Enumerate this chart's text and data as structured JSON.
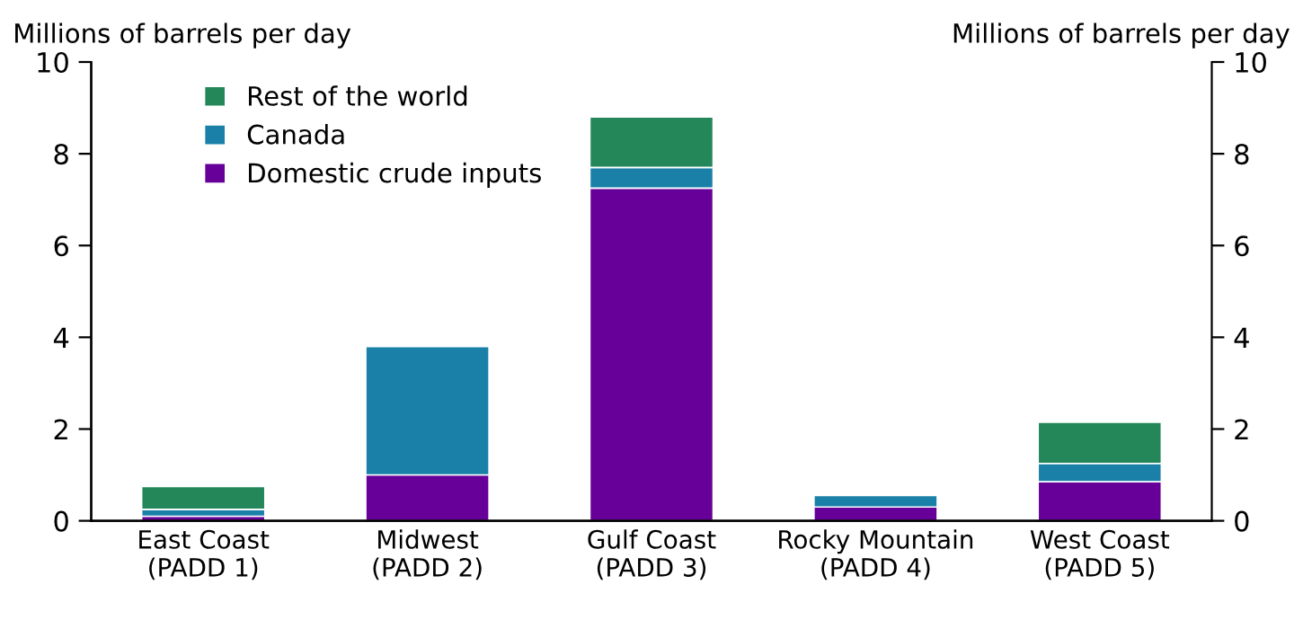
{
  "chart_data": {
    "type": "bar",
    "stacked": true,
    "categories": [
      "East Coast\n(PADD 1)",
      "Midwest\n(PADD 2)",
      "Gulf Coast\n(PADD 3)",
      "Rocky Mountain\n(PADD 4)",
      "West Coast\n(PADD 5)"
    ],
    "series": [
      {
        "name": "Domestic crude inputs",
        "color": "#660099",
        "values": [
          0.1,
          1.0,
          7.25,
          0.3,
          0.85
        ]
      },
      {
        "name": "Canada",
        "color": "#1a80a8",
        "values": [
          0.15,
          2.8,
          0.45,
          0.25,
          0.4
        ]
      },
      {
        "name": "Rest of the world",
        "color": "#23875a",
        "values": [
          0.5,
          0,
          1.1,
          0,
          0.9
        ]
      }
    ],
    "ylabel": "Millions of barrels per day",
    "y2label": "Millions of barrels per day",
    "ylim": [
      0,
      10
    ],
    "yticks": [
      0,
      2,
      4,
      6,
      8,
      10
    ],
    "y2lim": [
      0,
      10
    ],
    "y2ticks": [
      0,
      2,
      4,
      6,
      8,
      10
    ],
    "legend": "top left",
    "grid": false
  }
}
